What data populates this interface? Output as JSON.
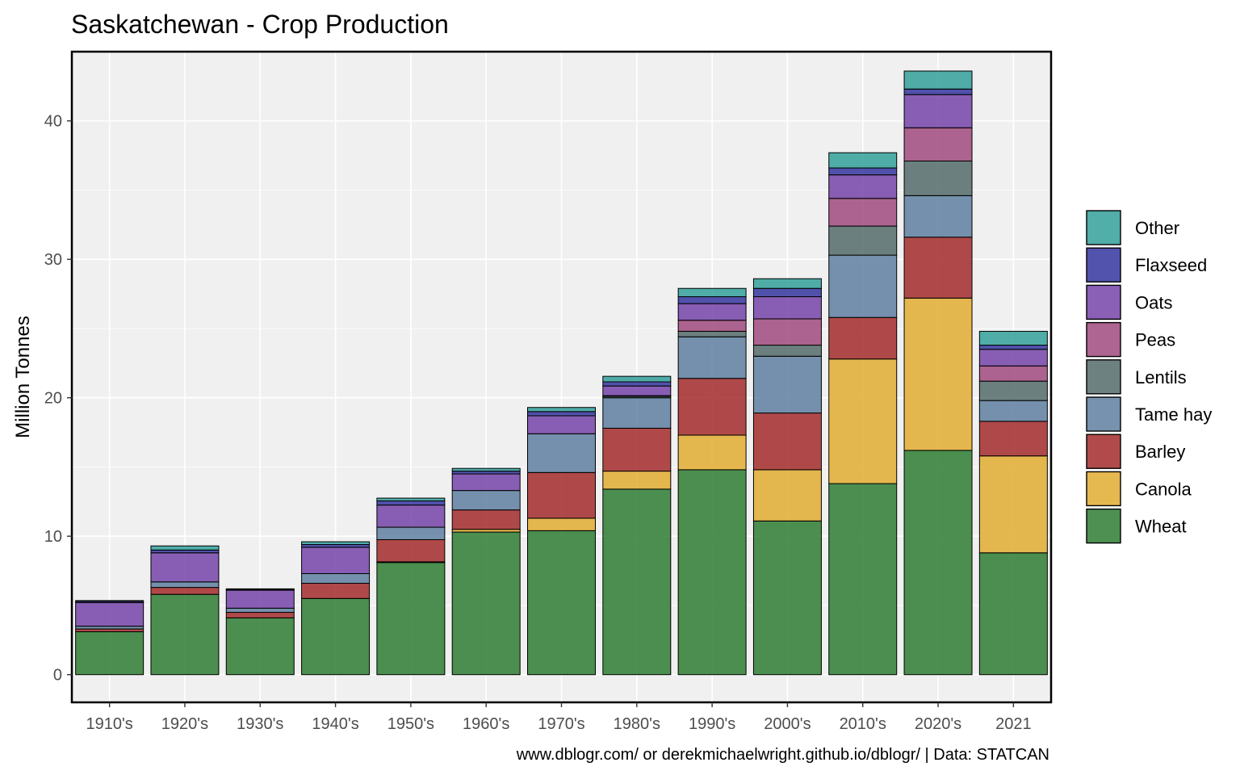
{
  "chart_data": {
    "type": "bar",
    "stacked": true,
    "title": "Saskatchewan - Crop Production",
    "xlabel": "",
    "ylabel": "Million Tonnes",
    "caption": "www.dblogr.com/ or derekmichaelwright.github.io/dblogr/ | Data: STATCAN",
    "ylim": [
      -2,
      45
    ],
    "yticks": [
      0,
      10,
      20,
      30,
      40
    ],
    "grid": true,
    "legend_position": "right",
    "categories": [
      "1910's",
      "1920's",
      "1930's",
      "1940's",
      "1950's",
      "1960's",
      "1970's",
      "1980's",
      "1990's",
      "2000's",
      "2010's",
      "2020's",
      "2021"
    ],
    "series": [
      {
        "name": "Wheat",
        "color": "#2e7d32",
        "values": [
          3.1,
          5.8,
          4.1,
          5.5,
          8.1,
          10.3,
          10.4,
          13.4,
          14.8,
          11.1,
          13.8,
          16.2,
          8.8
        ]
      },
      {
        "name": "Canola",
        "color": "#e2ab31",
        "values": [
          0,
          0,
          0,
          0,
          0.05,
          0.2,
          0.9,
          1.3,
          2.5,
          3.7,
          9.0,
          11.0,
          7.0
        ]
      },
      {
        "name": "Barley",
        "color": "#a32b2b",
        "values": [
          0.2,
          0.5,
          0.4,
          1.1,
          1.6,
          1.4,
          3.3,
          3.1,
          4.1,
          4.1,
          3.0,
          4.4,
          2.5
        ]
      },
      {
        "name": "Tame hay",
        "color": "#5e7fa0",
        "values": [
          0.2,
          0.4,
          0.3,
          0.7,
          0.9,
          1.4,
          2.8,
          2.2,
          3.0,
          4.1,
          4.5,
          3.0,
          1.5
        ]
      },
      {
        "name": "Lentils",
        "color": "#556b6b",
        "values": [
          0,
          0,
          0,
          0,
          0,
          0,
          0,
          0.1,
          0.4,
          0.8,
          2.1,
          2.5,
          1.4
        ]
      },
      {
        "name": "Peas",
        "color": "#a04a7e",
        "values": [
          0,
          0,
          0,
          0,
          0,
          0,
          0,
          0.05,
          0.8,
          1.9,
          2.0,
          2.4,
          1.1
        ]
      },
      {
        "name": "Oats",
        "color": "#7444a8",
        "values": [
          1.7,
          2.1,
          1.3,
          1.9,
          1.6,
          1.2,
          1.3,
          0.7,
          1.2,
          1.6,
          1.7,
          2.4,
          1.2
        ]
      },
      {
        "name": "Flaxseed",
        "color": "#34359f",
        "values": [
          0.1,
          0.2,
          0.05,
          0.2,
          0.3,
          0.2,
          0.3,
          0.3,
          0.5,
          0.6,
          0.5,
          0.4,
          0.3
        ]
      },
      {
        "name": "Other",
        "color": "#32a09a",
        "values": [
          0.05,
          0.3,
          0.05,
          0.2,
          0.2,
          0.2,
          0.3,
          0.4,
          0.6,
          0.7,
          1.1,
          1.3,
          1.0
        ]
      }
    ],
    "legend_order": [
      "Other",
      "Flaxseed",
      "Oats",
      "Peas",
      "Lentils",
      "Tame hay",
      "Barley",
      "Canola",
      "Wheat"
    ]
  }
}
